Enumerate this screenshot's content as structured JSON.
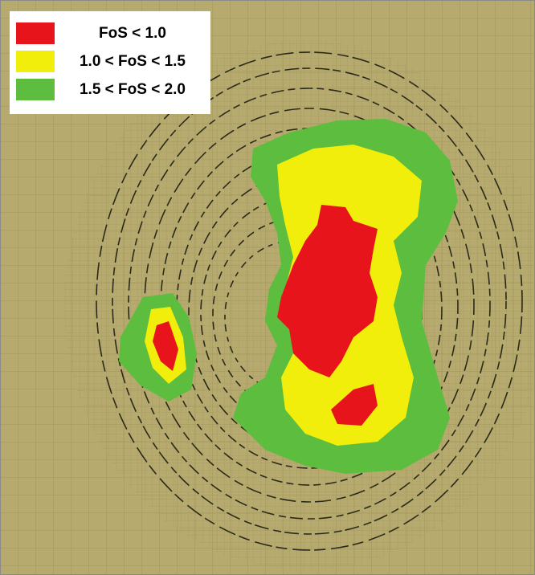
{
  "legend": {
    "items": [
      {
        "label": "FoS < 1.0",
        "color": "#e8141c"
      },
      {
        "label": "1.0 < FoS < 1.5",
        "color": "#f0ee0a"
      },
      {
        "label": "1.5 < FoS < 2.0",
        "color": "#5cbd3e"
      }
    ]
  }
}
